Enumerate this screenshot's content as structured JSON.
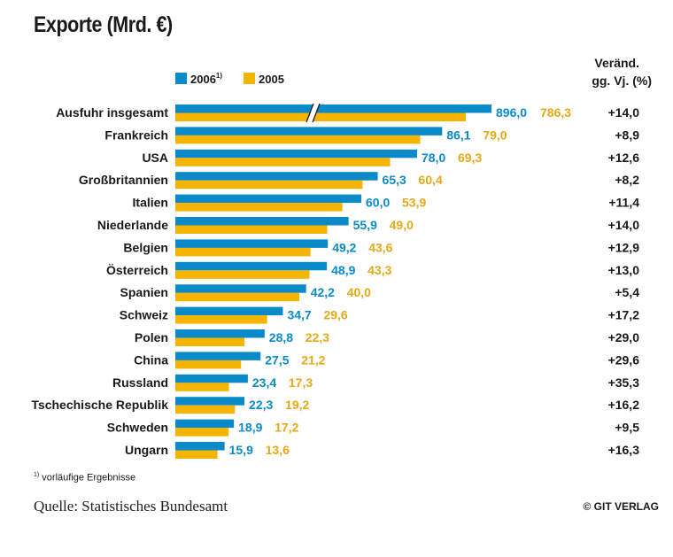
{
  "title": "Exporte (Mrd. €)",
  "chart_data": {
    "type": "bar",
    "orientation": "horizontal",
    "title": "Exporte (Mrd. €)",
    "change_header": [
      "Veränd.",
      "gg. Vj. (%)"
    ],
    "categories": [
      "Ausfuhr insgesamt",
      "Frankreich",
      "USA",
      "Großbritannien",
      "Italien",
      "Niederlande",
      "Belgien",
      "Österreich",
      "Spanien",
      "Schweiz",
      "Polen",
      "China",
      "Russland",
      "Tschechische Republik",
      "Schweden",
      "Ungarn"
    ],
    "series": [
      {
        "name": "2006",
        "name_sup": "1)",
        "color": "#0a8ac9",
        "values": [
          896.0,
          86.1,
          78.0,
          65.3,
          60.0,
          55.9,
          49.2,
          48.9,
          42.2,
          34.7,
          28.8,
          27.5,
          23.4,
          22.3,
          18.9,
          15.9
        ],
        "labels": [
          "896,0",
          "86,1",
          "78,0",
          "65,3",
          "60,0",
          "55,9",
          "49,2",
          "48,9",
          "42,2",
          "34,7",
          "28,8",
          "27,5",
          "23,4",
          "22,3",
          "18,9",
          "15,9"
        ]
      },
      {
        "name": "2005",
        "color": "#f5b400",
        "values": [
          786.3,
          79.0,
          69.3,
          60.4,
          53.9,
          49.0,
          43.6,
          43.3,
          40.0,
          29.6,
          22.3,
          21.2,
          17.3,
          19.2,
          17.2,
          13.6
        ],
        "labels": [
          "786,3",
          "79,0",
          "69,3",
          "60,4",
          "53,9",
          "49,0",
          "43,6",
          "43,3",
          "40,0",
          "29,6",
          "22,3",
          "21,2",
          "17,3",
          "19,2",
          "17,2",
          "13,6"
        ]
      }
    ],
    "change": [
      "+14,0",
      "+8,9",
      "+12,6",
      "+8,2",
      "+11,4",
      "+14,0",
      "+12,9",
      "+13,0",
      "+5,4",
      "+17,2",
      "+29,0",
      "+29,6",
      "+35,3",
      "+16,2",
      "+9,5",
      "+16,3"
    ],
    "broken_axis_category": "Ausfuhr insgesamt",
    "legend_position": "top",
    "grid": false
  },
  "footnote": {
    "marker": "1)",
    "text": "vorläufige Ergebnisse"
  },
  "source": "Quelle: Statistisches Bundesamt",
  "credit": "© GIT VERLAG"
}
